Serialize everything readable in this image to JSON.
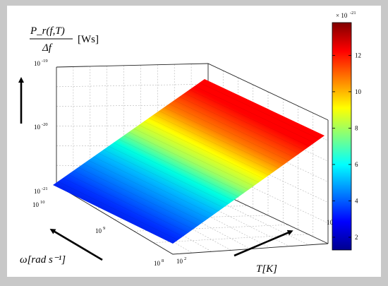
{
  "chart_data": {
    "type": "surface",
    "zlabel": {
      "numerator": "P_r(f,T)",
      "denominator": "Δf",
      "unit": "[Ws]"
    },
    "xlabel": "ω[rad s⁻¹]",
    "ylabel": "T[K]",
    "z_scale": "log",
    "z_ticks": [
      {
        "base": "10",
        "exp": "-19"
      },
      {
        "base": "10",
        "exp": "-20"
      },
      {
        "base": "10",
        "exp": "-21"
      }
    ],
    "omega_ticks": [
      {
        "base": "10",
        "exp": "10"
      },
      {
        "base": "10",
        "exp": "9"
      },
      {
        "base": "10",
        "exp": "8"
      }
    ],
    "T_ticks": [
      {
        "base": "10",
        "exp": "2"
      },
      {
        "base": "10",
        "exp": "3"
      }
    ],
    "surface_value_range": [
      1.5e-21,
      1.35e-20
    ],
    "colorbar": {
      "multiplier": "× 10",
      "multiplier_exp": "-21",
      "ticks": [
        "12",
        "10",
        "8",
        "6",
        "4",
        "2"
      ],
      "tick_values": [
        12,
        10,
        8,
        6,
        4,
        2
      ],
      "range": [
        1.3,
        13.8
      ],
      "colormap": "jet"
    },
    "grid": true
  }
}
